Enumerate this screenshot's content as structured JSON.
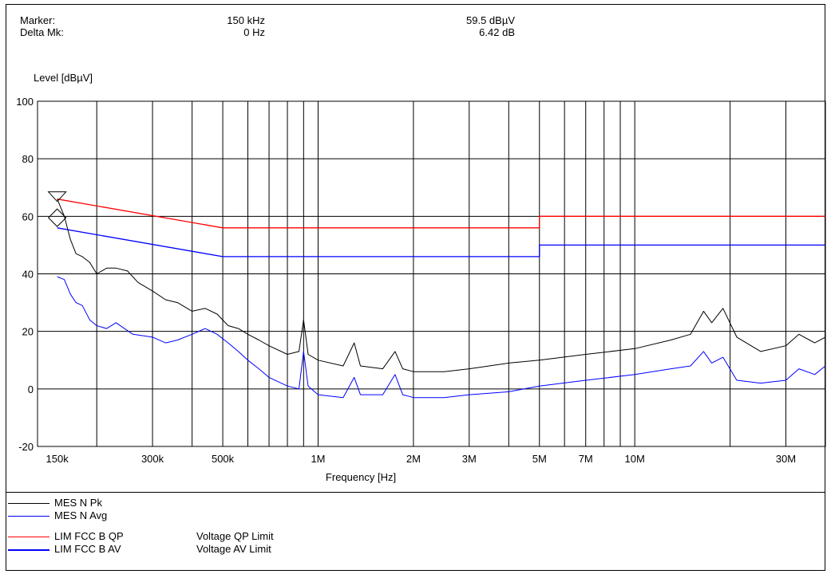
{
  "marker": {
    "marker_label": "Marker:",
    "delta_label": "Delta Mk:",
    "marker_freq": "150 kHz",
    "delta_freq": "0 Hz",
    "marker_level": "59.5 dBµV",
    "delta_level": "6.42 dB"
  },
  "legend": [
    {
      "name": "MES  N Pk",
      "desc": "",
      "color": "#000000"
    },
    {
      "name": "MES  N Avg",
      "desc": "",
      "color": "#0000ff"
    },
    {
      "name": "LIM  FCC B QP",
      "desc": "Voltage QP Limit",
      "color": "#ff0000"
    },
    {
      "name": "LIM  FCC B AV",
      "desc": "Voltage AV Limit",
      "color": "#0000ff"
    }
  ],
  "chart_data": {
    "type": "line",
    "ylabel": "Level [dBµV]",
    "xlabel": "Frequency [Hz]",
    "xscale": "log",
    "xlim": [
      130000,
      40000000
    ],
    "ylim": [
      -20,
      100
    ],
    "yticks": [
      -20,
      0,
      20,
      40,
      60,
      80,
      100
    ],
    "xtick_labels": [
      {
        "f": 150000,
        "label": "150k"
      },
      {
        "f": 300000,
        "label": "300k"
      },
      {
        "f": 500000,
        "label": "500k"
      },
      {
        "f": 1000000,
        "label": "1M"
      },
      {
        "f": 2000000,
        "label": "2M"
      },
      {
        "f": 3000000,
        "label": "3M"
      },
      {
        "f": 5000000,
        "label": "5M"
      },
      {
        "f": 7000000,
        "label": "7M"
      },
      {
        "f": 10000000,
        "label": "10M"
      },
      {
        "f": 30000000,
        "label": "30M"
      }
    ],
    "grid": true,
    "marker_points": [
      {
        "f": 150000,
        "level": 66.0,
        "shape": "triangle"
      },
      {
        "f": 150000,
        "level": 59.5,
        "shape": "diamond"
      }
    ],
    "series": [
      {
        "name": "LIM  FCC B QP",
        "color": "#ff0000",
        "points": [
          [
            150000,
            66
          ],
          [
            500000,
            56
          ],
          [
            5000000,
            56
          ],
          [
            5000000,
            60
          ],
          [
            40000000,
            60
          ]
        ]
      },
      {
        "name": "LIM  FCC B AV",
        "color": "#0000ff",
        "points": [
          [
            150000,
            56
          ],
          [
            500000,
            46
          ],
          [
            5000000,
            46
          ],
          [
            5000000,
            50
          ],
          [
            40000000,
            50
          ]
        ]
      },
      {
        "name": "MES  N Pk",
        "color": "#000000",
        "points": [
          [
            150000,
            66
          ],
          [
            158000,
            60
          ],
          [
            165000,
            52
          ],
          [
            172000,
            47
          ],
          [
            180000,
            46
          ],
          [
            190000,
            44
          ],
          [
            200000,
            40
          ],
          [
            215000,
            42
          ],
          [
            230000,
            42
          ],
          [
            250000,
            41
          ],
          [
            270000,
            37
          ],
          [
            300000,
            34
          ],
          [
            330000,
            31
          ],
          [
            360000,
            30
          ],
          [
            400000,
            27
          ],
          [
            440000,
            28
          ],
          [
            480000,
            26
          ],
          [
            520000,
            22
          ],
          [
            560000,
            21
          ],
          [
            600000,
            19
          ],
          [
            650000,
            17
          ],
          [
            700000,
            15
          ],
          [
            800000,
            12
          ],
          [
            870000,
            13
          ],
          [
            900000,
            24
          ],
          [
            930000,
            12
          ],
          [
            1000000,
            10
          ],
          [
            1200000,
            8
          ],
          [
            1300000,
            16
          ],
          [
            1360000,
            8
          ],
          [
            1600000,
            7
          ],
          [
            1750000,
            13
          ],
          [
            1850000,
            7
          ],
          [
            2000000,
            6
          ],
          [
            2500000,
            6
          ],
          [
            3000000,
            7
          ],
          [
            4000000,
            9
          ],
          [
            5000000,
            10
          ],
          [
            7000000,
            12
          ],
          [
            10000000,
            14
          ],
          [
            13000000,
            17
          ],
          [
            15000000,
            19
          ],
          [
            16500000,
            27
          ],
          [
            17500000,
            23
          ],
          [
            19000000,
            28
          ],
          [
            21000000,
            18
          ],
          [
            25000000,
            13
          ],
          [
            30000000,
            15
          ],
          [
            33000000,
            19
          ],
          [
            37000000,
            16
          ],
          [
            40000000,
            18
          ]
        ]
      },
      {
        "name": "MES  N Avg",
        "color": "#0000ff",
        "points": [
          [
            150000,
            39
          ],
          [
            158000,
            38
          ],
          [
            165000,
            33
          ],
          [
            172000,
            30
          ],
          [
            180000,
            29
          ],
          [
            190000,
            24
          ],
          [
            200000,
            22
          ],
          [
            215000,
            21
          ],
          [
            230000,
            23
          ],
          [
            260000,
            19
          ],
          [
            300000,
            18
          ],
          [
            330000,
            16
          ],
          [
            360000,
            17
          ],
          [
            400000,
            19
          ],
          [
            440000,
            21
          ],
          [
            480000,
            19
          ],
          [
            520000,
            16
          ],
          [
            560000,
            13
          ],
          [
            600000,
            10
          ],
          [
            650000,
            7
          ],
          [
            700000,
            4
          ],
          [
            800000,
            1
          ],
          [
            870000,
            0
          ],
          [
            900000,
            13
          ],
          [
            930000,
            1
          ],
          [
            1000000,
            -2
          ],
          [
            1200000,
            -3
          ],
          [
            1300000,
            4
          ],
          [
            1360000,
            -2
          ],
          [
            1600000,
            -2
          ],
          [
            1750000,
            5
          ],
          [
            1850000,
            -2
          ],
          [
            2000000,
            -3
          ],
          [
            2500000,
            -3
          ],
          [
            3000000,
            -2
          ],
          [
            4000000,
            -1
          ],
          [
            5000000,
            1
          ],
          [
            7000000,
            3
          ],
          [
            10000000,
            5
          ],
          [
            13000000,
            7
          ],
          [
            15000000,
            8
          ],
          [
            16500000,
            13
          ],
          [
            17500000,
            9
          ],
          [
            19000000,
            11
          ],
          [
            21000000,
            3
          ],
          [
            25000000,
            2
          ],
          [
            30000000,
            3
          ],
          [
            33000000,
            7
          ],
          [
            37000000,
            5
          ],
          [
            40000000,
            8
          ]
        ]
      }
    ]
  }
}
